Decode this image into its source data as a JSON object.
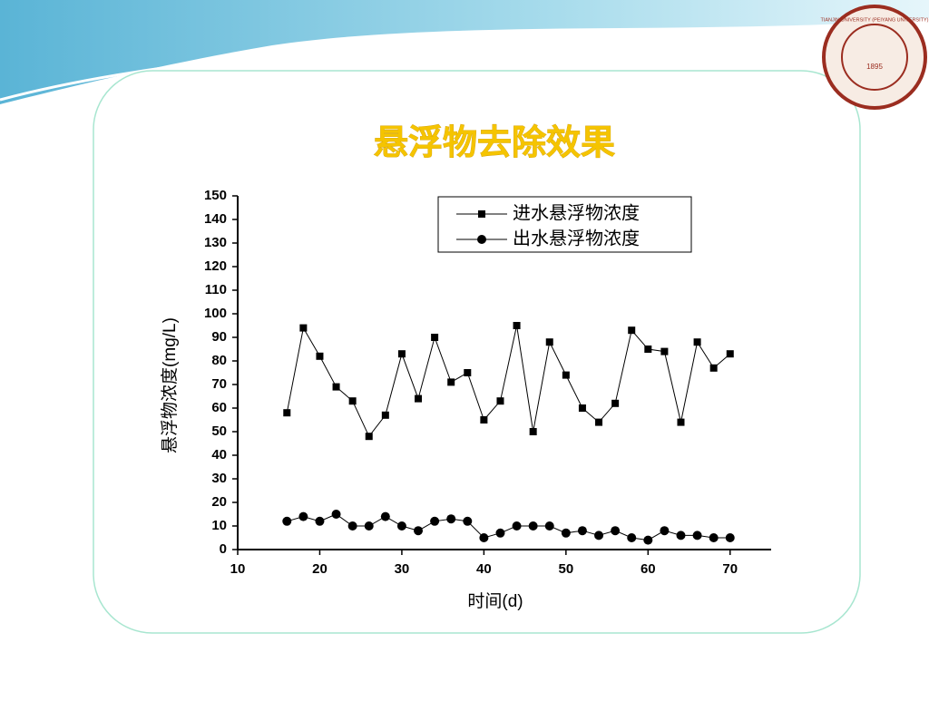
{
  "chart_data": {
    "type": "line",
    "title": "悬浮物去除效果",
    "x_label": "时间(d)",
    "y_label": "悬浮物浓度(mg/L)",
    "x": [
      16,
      18,
      20,
      22,
      24,
      26,
      28,
      30,
      32,
      34,
      36,
      38,
      40,
      42,
      44,
      46,
      48,
      50,
      52,
      54,
      56,
      58,
      60,
      62,
      64,
      66,
      68,
      70
    ],
    "series": [
      {
        "name": "进水悬浮物浓度",
        "color": "#000000",
        "marker": "square",
        "values": [
          58,
          94,
          82,
          69,
          63,
          48,
          57,
          83,
          64,
          90,
          71,
          75,
          55,
          63,
          95,
          50,
          88,
          74,
          60,
          54,
          62,
          93,
          85,
          84,
          54,
          88,
          77,
          83
        ]
      },
      {
        "name": "出水悬浮物浓度",
        "color": "#000000",
        "marker": "circle",
        "values": [
          12,
          14,
          12,
          15,
          10,
          10,
          14,
          10,
          8,
          12,
          13,
          12,
          5,
          7,
          10,
          10,
          10,
          7,
          8,
          6,
          8,
          5,
          4,
          8,
          6,
          6,
          5,
          5
        ]
      }
    ],
    "xlim": [
      10,
      75
    ],
    "xticks": [
      10,
      20,
      30,
      40,
      50,
      60,
      70
    ],
    "ylim": [
      0,
      150
    ],
    "yticks": [
      0,
      10,
      20,
      30,
      40,
      50,
      60,
      70,
      80,
      90,
      100,
      110,
      120,
      130,
      140,
      150
    ],
    "legend": "upper right",
    "grid": false
  },
  "logo": {
    "text": "TIANJIN UNIVERSITY (PEIYANG UNIVERSITY)",
    "year": "1895"
  }
}
